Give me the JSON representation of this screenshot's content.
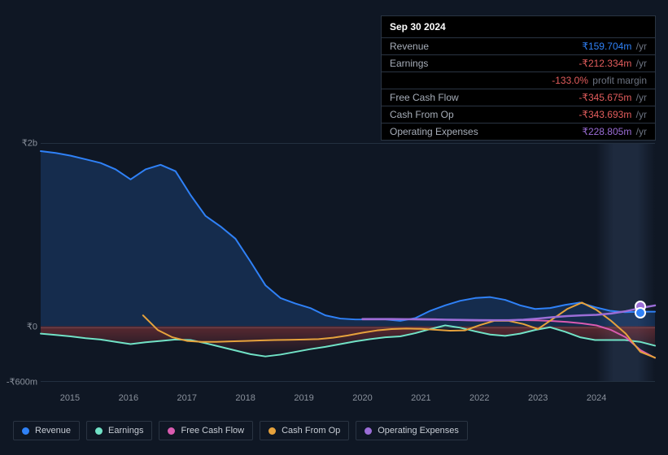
{
  "tooltip": {
    "date": "Sep 30 2024",
    "rows": [
      {
        "label": "Revenue",
        "value": "₹159.704m",
        "unit": "/yr",
        "color": "#2f81f7"
      },
      {
        "label": "Earnings",
        "value": "-₹212.334m",
        "unit": "/yr",
        "color": "#e35d5d"
      },
      {
        "label": "",
        "value": "-133.0%",
        "unit": "profit margin",
        "color": "#e35d5d"
      },
      {
        "label": "Free Cash Flow",
        "value": "-₹345.675m",
        "unit": "/yr",
        "color": "#e35d5d"
      },
      {
        "label": "Cash From Op",
        "value": "-₹343.693m",
        "unit": "/yr",
        "color": "#e35d5d"
      },
      {
        "label": "Operating Expenses",
        "value": "₹228.805m",
        "unit": "/yr",
        "color": "#9b6dd7"
      }
    ]
  },
  "chart": {
    "type": "area-line",
    "background_color": "#0f1724",
    "grid_color": "#233040",
    "zero_color": "#3a4656",
    "ylim_top": 2000,
    "ylim_bottom": -600,
    "y_ticks": [
      {
        "v": 2000,
        "label": "₹2b"
      },
      {
        "v": 0,
        "label": "₹0"
      },
      {
        "v": -600,
        "label": "-₹600m"
      }
    ],
    "xlim": [
      2014.5,
      2025.0
    ],
    "x_ticks": [
      2015,
      2016,
      2017,
      2018,
      2019,
      2020,
      2021,
      2022,
      2023,
      2024
    ],
    "highlight_band": {
      "from": 2024.0,
      "to": 2025.0
    },
    "marker_x": 2024.75,
    "series": [
      {
        "name": "Revenue",
        "key": "revenue",
        "color": "#2f81f7",
        "fill": "rgba(47,129,247,0.20)",
        "fill_to_zero": true,
        "line_width": 2,
        "x_from": 2014.5,
        "y": [
          1920,
          1900,
          1870,
          1830,
          1790,
          1720,
          1610,
          1720,
          1770,
          1700,
          1440,
          1210,
          1095,
          960,
          710,
          450,
          310,
          250,
          200,
          120,
          85,
          75,
          75,
          75,
          60,
          90,
          170,
          230,
          280,
          310,
          320,
          290,
          230,
          190,
          200,
          235,
          260,
          210,
          170,
          155,
          160,
          159.704
        ]
      },
      {
        "name": "Earnings",
        "key": "earnings",
        "color": "#71e2c6",
        "fill": "rgba(186,64,64,0.30)",
        "gradient_from": "rgba(186,64,64,0.35)",
        "gradient_to": "rgba(186,64,64,0.0)",
        "fill_to_zero": true,
        "line_width": 2,
        "x_from": 2014.5,
        "y": [
          -80,
          -95,
          -110,
          -130,
          -145,
          -170,
          -195,
          -175,
          -160,
          -145,
          -150,
          -185,
          -225,
          -265,
          -305,
          -330,
          -310,
          -280,
          -250,
          -225,
          -195,
          -165,
          -140,
          -120,
          -110,
          -75,
          -30,
          10,
          -15,
          -55,
          -90,
          -105,
          -80,
          -40,
          -10,
          -60,
          -120,
          -150,
          -150,
          -150,
          -170,
          -212.334
        ]
      },
      {
        "name": "Free Cash Flow",
        "key": "fcf",
        "color": "#d95bb0",
        "fill": null,
        "line_width": 2,
        "x_from": 2020.0,
        "y": [
          75,
          75,
          75,
          78,
          80,
          78,
          70,
          65,
          62,
          64,
          67,
          68,
          64,
          58,
          48,
          32,
          10,
          -40,
          -120,
          -260,
          -345.675
        ]
      },
      {
        "name": "Cash From Op",
        "key": "cfo",
        "color": "#e6a23c",
        "fill": null,
        "line_width": 2,
        "x_from": 2016.25,
        "y": [
          120,
          -40,
          -120,
          -160,
          -170,
          -170,
          -165,
          -160,
          -155,
          -150,
          -148,
          -145,
          -140,
          -125,
          -100,
          -70,
          -45,
          -30,
          -25,
          -28,
          -38,
          -48,
          -45,
          12,
          60,
          60,
          25,
          -30,
          80,
          190,
          260,
          180,
          60,
          -80,
          -280,
          -343.693
        ]
      },
      {
        "name": "Operating Expenses",
        "key": "opex",
        "color": "#9b6dd7",
        "fill": null,
        "line_width": 2.5,
        "x_from": 2020.0,
        "y": [
          80,
          80,
          80,
          78,
          76,
          74,
          72,
          70,
          68,
          67,
          67,
          72,
          85,
          100,
          112,
          120,
          126,
          140,
          165,
          200,
          228.805
        ]
      }
    ],
    "markers": [
      {
        "x": 2024.75,
        "y": 228.805,
        "color": "#9b6dd7"
      },
      {
        "x": 2024.75,
        "y": 159.704,
        "color": "#2f81f7"
      }
    ]
  },
  "legend": [
    {
      "label": "Revenue",
      "color": "#2f81f7"
    },
    {
      "label": "Earnings",
      "color": "#71e2c6"
    },
    {
      "label": "Free Cash Flow",
      "color": "#d95bb0"
    },
    {
      "label": "Cash From Op",
      "color": "#e6a23c"
    },
    {
      "label": "Operating Expenses",
      "color": "#9b6dd7"
    }
  ]
}
